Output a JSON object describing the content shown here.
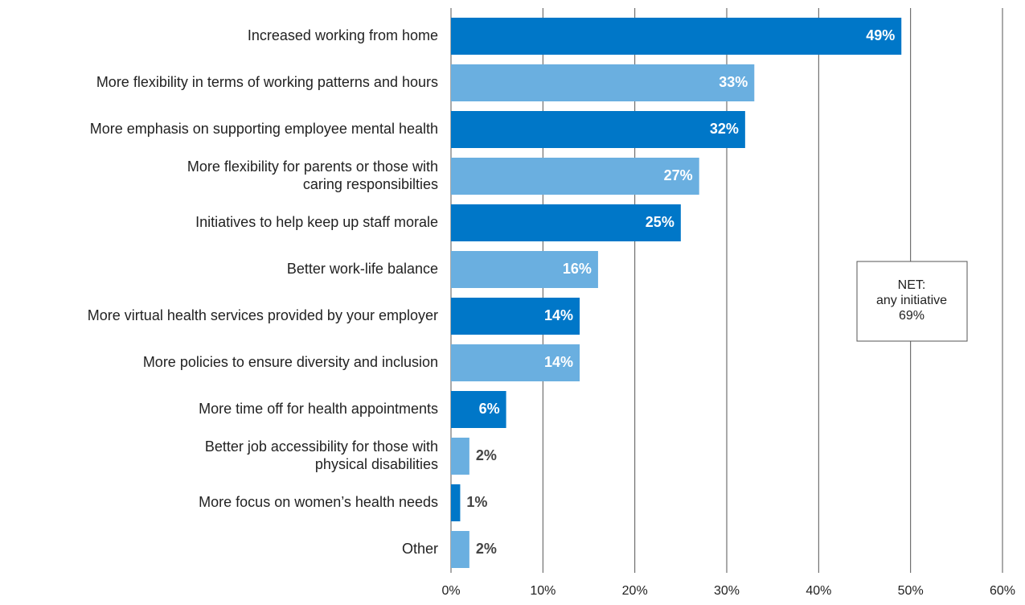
{
  "chart_data": {
    "type": "bar",
    "orientation": "horizontal",
    "categories": [
      "Increased working from home",
      "More flexibility in terms of working patterns and hours",
      "More emphasis on supporting employee mental health",
      "More flexibility for parents or those with\ncaring responsibilties",
      "Initiatives to help keep up staff morale",
      "Better work-life balance",
      "More virtual health services provided by your employer",
      "More policies to ensure diversity and inclusion",
      "More time off for health appointments",
      "Better job accessibility for those with\nphysical disabilities",
      "More focus on women’s health needs",
      "Other"
    ],
    "values": [
      49,
      33,
      32,
      27,
      25,
      16,
      14,
      14,
      6,
      2,
      1,
      2
    ],
    "value_labels": [
      "49%",
      "33%",
      "32%",
      "27%",
      "25%",
      "16%",
      "14%",
      "14%",
      "6%",
      "2%",
      "1%",
      "2%"
    ],
    "colors": [
      "#0077c8",
      "#6aafe0",
      "#0077c8",
      "#6aafe0",
      "#0077c8",
      "#6aafe0",
      "#0077c8",
      "#6aafe0",
      "#0077c8",
      "#6aafe0",
      "#0077c8",
      "#6aafe0"
    ],
    "xlim": [
      0,
      60
    ],
    "xticks": [
      {
        "value": 0,
        "label": "0%"
      },
      {
        "value": 10,
        "label": "10%"
      },
      {
        "value": 20,
        "label": "20%"
      },
      {
        "value": 30,
        "label": "30%"
      },
      {
        "value": 40,
        "label": "40%"
      },
      {
        "value": 50,
        "label": "50%"
      },
      {
        "value": 60,
        "label": "60%"
      }
    ],
    "grid": true,
    "annotation": "NET:\nany initiative\n69%"
  }
}
